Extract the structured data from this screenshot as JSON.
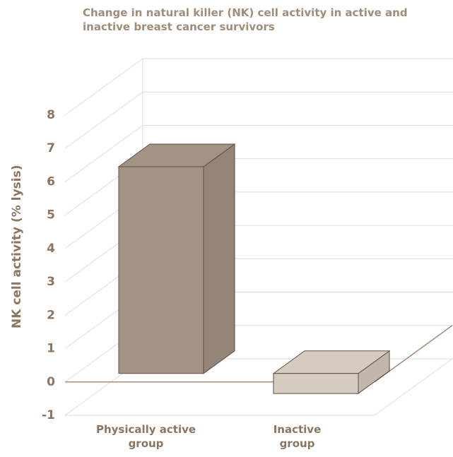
{
  "chart_data": {
    "type": "bar3d",
    "title": "Change in natural killer (NK) cell activity in active and inactive breast cancer survivors",
    "y_label": "NK cell activity (% lysis)",
    "categories": [
      "Physically active group",
      "Inactive group"
    ],
    "values": [
      6.2,
      -0.6
    ],
    "colors": [
      "#a39382",
      "#d6cbbf"
    ],
    "ylim": [
      -1,
      8
    ],
    "yticks": [
      -1,
      0,
      1,
      2,
      3,
      4,
      5,
      6,
      7,
      8
    ],
    "grid": true
  }
}
